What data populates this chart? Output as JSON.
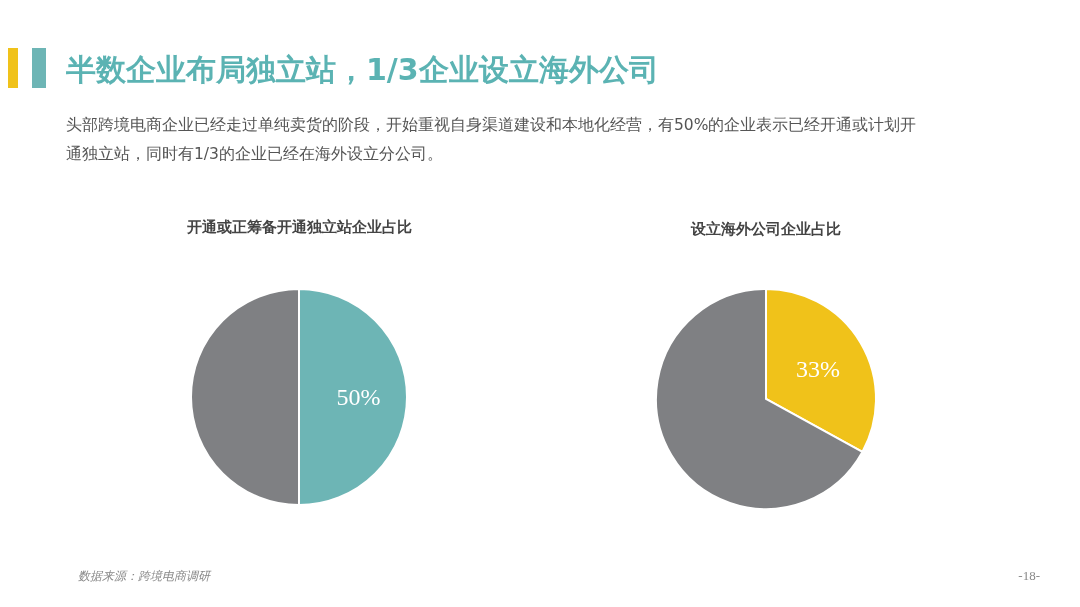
{
  "chart_data": [
    {
      "type": "other",
      "title": "半数企业布局独立站，1/3企业设立海外公司",
      "subtitle": "头部跨境电商企业已经走过单纯卖货的阶段，开始重视自身渠道建设和本地化经营，有50%的企业表示已经开通或计划开通独立站，同时有1/3的企业已经在海外设立分公司。",
      "annotations": [
        "数据来源：跨境电商调研",
        "-18-"
      ]
    },
    {
      "type": "pie",
      "title": "开通或正筹备开通独立站企业占比",
      "categories": [
        null,
        null
      ],
      "values": [
        50,
        50
      ],
      "colors": [
        "#6db5b5",
        "#7f8083"
      ],
      "value_labels": [
        "50%",
        null
      ]
    },
    {
      "type": "pie",
      "title": "设立海外公司企业占比",
      "categories": [
        null,
        null
      ],
      "values": [
        33,
        67
      ],
      "colors": [
        "#f0c21a",
        "#7f8083"
      ],
      "value_labels": [
        "33%",
        null
      ]
    }
  ]
}
